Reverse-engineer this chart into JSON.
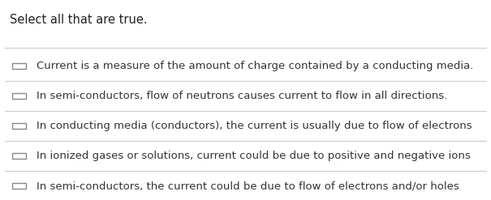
{
  "title": "Select all that are true.",
  "title_fontsize": 10.5,
  "title_color": "#222222",
  "background_color": "#ffffff",
  "separator_color": "#cccccc",
  "checkbox_color": "#888888",
  "text_color": "#333333",
  "text_fontsize": 9.5,
  "options": [
    "Current is a measure of the amount of charge contained by a conducting media.",
    "In semi-conductors, flow of neutrons causes current to flow in all directions.",
    "In conducting media (conductors), the current is usually due to flow of electrons",
    "In ionized gases or solutions, current could be due to positive and negative ions",
    "In semi-conductors, the current could be due to flow of electrons and/or holes"
  ],
  "figwidth": 6.05,
  "figheight": 2.47,
  "dpi": 100
}
